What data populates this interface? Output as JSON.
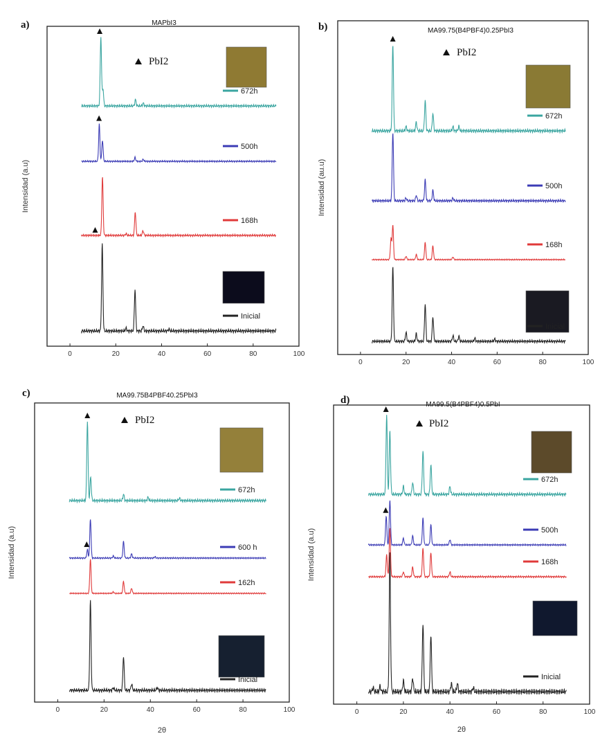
{
  "chart_data": [
    {
      "panel": "a)",
      "title": "MAPbI3",
      "type": "line",
      "xlabel": "",
      "ylabel": "Intensidad (a.u)",
      "xlim": [
        -10,
        100
      ],
      "xticks": [
        0,
        20,
        40,
        60,
        80,
        100
      ],
      "xtick_labels": [
        "0",
        "20",
        "40",
        "60",
        "80",
        "100"
      ],
      "marker_label": "PbI2",
      "series": [
        {
          "name": "672h",
          "color": "#3aa5a0",
          "peaks": [
            [
              13.5,
              1.0
            ],
            [
              14.4,
              0.25
            ],
            [
              28.6,
              0.09
            ],
            [
              32.0,
              0.04
            ]
          ],
          "pbi2_at": 13
        },
        {
          "name": "500h",
          "color": "#3b3bb5",
          "peaks": [
            [
              12.8,
              0.8
            ],
            [
              14.2,
              0.45
            ],
            [
              28.4,
              0.08
            ],
            [
              32.0,
              0.04
            ]
          ],
          "pbi2_at": 12.7
        },
        {
          "name": "168h",
          "color": "#e03a3a",
          "peaks": [
            [
              14.2,
              1.0
            ],
            [
              28.5,
              0.4
            ],
            [
              31.9,
              0.08
            ],
            [
              24.5,
              0.03
            ]
          ],
          "pbi2_at": 11
        },
        {
          "name": "Inicial",
          "color": "#222222",
          "peaks": [
            [
              14.1,
              1.0
            ],
            [
              28.4,
              0.48
            ],
            [
              31.9,
              0.06
            ],
            [
              24.5,
              0.03
            ],
            [
              43.2,
              0.02
            ]
          ],
          "pbi2_at": null
        }
      ]
    },
    {
      "panel": "b)",
      "title": "MA99.75(B4PBF4)0.25PbI3",
      "type": "line",
      "xlabel": "",
      "ylabel": "Intensidad (au.u)",
      "xlim": [
        -10,
        100
      ],
      "xticks": [
        0,
        20,
        40,
        60,
        80,
        100
      ],
      "xtick_labels": [
        "0",
        "20",
        "40",
        "60",
        "80",
        "100"
      ],
      "marker_label": "PbI2",
      "series": [
        {
          "name": "672h",
          "color": "#3aa5a0",
          "peaks": [
            [
              14.2,
              1.0
            ],
            [
              28.4,
              0.35
            ],
            [
              31.8,
              0.2
            ],
            [
              24.5,
              0.1
            ],
            [
              20,
              0.05
            ],
            [
              40.6,
              0.05
            ],
            [
              43.2,
              0.05
            ]
          ],
          "pbi2_at": 14.2
        },
        {
          "name": "500h",
          "color": "#3b3bb5",
          "peaks": [
            [
              14.2,
              1.0
            ],
            [
              28.4,
              0.3
            ],
            [
              31.8,
              0.15
            ],
            [
              24.5,
              0.08
            ],
            [
              20,
              0.04
            ],
            [
              40.6,
              0.04
            ]
          ],
          "pbi2_at": null
        },
        {
          "name": "168h",
          "color": "#e03a3a",
          "peaks": [
            [
              14.2,
              1.0
            ],
            [
              13.4,
              0.6
            ],
            [
              28.4,
              0.5
            ],
            [
              31.8,
              0.4
            ],
            [
              24.5,
              0.15
            ],
            [
              20,
              0.1
            ],
            [
              40.6,
              0.08
            ]
          ],
          "pbi2_at": null
        },
        {
          "name": "Inicial",
          "color": "#222222",
          "peaks": [
            [
              14.2,
              1.0
            ],
            [
              28.4,
              0.5
            ],
            [
              31.8,
              0.33
            ],
            [
              24.5,
              0.1
            ],
            [
              20,
              0.12
            ],
            [
              40.6,
              0.08
            ],
            [
              43.2,
              0.07
            ],
            [
              50.2,
              0.04
            ],
            [
              58.9,
              0.03
            ]
          ],
          "pbi2_at": null
        }
      ]
    },
    {
      "panel": "c)",
      "title": "MA99.75B4PBF40.25PbI3",
      "type": "line",
      "xlabel": "2θ",
      "ylabel": "Intensidad (a.u)",
      "xlim": [
        -10,
        100
      ],
      "xticks": [
        0,
        20,
        40,
        60,
        80,
        100
      ],
      "xtick_labels": [
        "0",
        "20",
        "40",
        "60",
        "80",
        "100"
      ],
      "marker_label": "PbI2",
      "series": [
        {
          "name": "672h",
          "color": "#3aa5a0",
          "peaks": [
            [
              12.8,
              1.0
            ],
            [
              14.2,
              0.3
            ],
            [
              28.4,
              0.08
            ],
            [
              39,
              0.04
            ],
            [
              52.5,
              0.03
            ]
          ],
          "pbi2_at": 12.8
        },
        {
          "name": "600 h",
          "color": "#3b3bb5",
          "peaks": [
            [
              14.1,
              0.95
            ],
            [
              12.8,
              0.2
            ],
            [
              28.4,
              0.4
            ],
            [
              31.9,
              0.1
            ],
            [
              24,
              0.05
            ],
            [
              42,
              0.03
            ]
          ],
          "pbi2_at": 12.5
        },
        {
          "name": "162h",
          "color": "#e03a3a",
          "peaks": [
            [
              14.1,
              1.0
            ],
            [
              28.4,
              0.35
            ],
            [
              31.9,
              0.15
            ],
            [
              24,
              0.04
            ]
          ],
          "pbi2_at": null
        },
        {
          "name": "Inicial",
          "color": "#222222",
          "peaks": [
            [
              14.1,
              1.0
            ],
            [
              28.4,
              0.38
            ],
            [
              31.9,
              0.07
            ],
            [
              24,
              0.03
            ],
            [
              43,
              0.03
            ]
          ],
          "pbi2_at": null
        }
      ]
    },
    {
      "panel": "d)",
      "title": "MA99.5(B4PBF4)0.5PbI",
      "type": "line",
      "xlabel": "2θ",
      "ylabel": "Intensidad (a.u)",
      "xlim": [
        -10,
        100
      ],
      "xticks": [
        0,
        20,
        40,
        60,
        80,
        100
      ],
      "xtick_labels": [
        "0",
        "20",
        "40",
        "60",
        "80",
        "100"
      ],
      "marker_label": "PbI2",
      "series": [
        {
          "name": "672h",
          "color": "#3aa5a0",
          "peaks": [
            [
              12.8,
              1.0
            ],
            [
              14.2,
              0.8
            ],
            [
              28.4,
              0.55
            ],
            [
              31.8,
              0.38
            ],
            [
              24,
              0.15
            ],
            [
              20,
              0.1
            ],
            [
              40,
              0.1
            ]
          ],
          "pbi2_at": 12.5
        },
        {
          "name": "500h",
          "color": "#3b3bb5",
          "peaks": [
            [
              12.6,
              0.65
            ],
            [
              14.2,
              1.0
            ],
            [
              28.4,
              0.6
            ],
            [
              31.8,
              0.45
            ],
            [
              24,
              0.2
            ],
            [
              20,
              0.15
            ],
            [
              40,
              0.12
            ]
          ],
          "pbi2_at": 12.4
        },
        {
          "name": "168h",
          "color": "#e03a3a",
          "peaks": [
            [
              12.8,
              0.45
            ],
            [
              14.2,
              1.0
            ],
            [
              28.4,
              0.6
            ],
            [
              31.8,
              0.5
            ],
            [
              24,
              0.2
            ],
            [
              20,
              0.1
            ],
            [
              40,
              0.1
            ]
          ],
          "pbi2_at": null
        },
        {
          "name": "Inicial",
          "color": "#222222",
          "peaks": [
            [
              14.2,
              1.0
            ],
            [
              28.4,
              0.5
            ],
            [
              31.8,
              0.42
            ],
            [
              24,
              0.1
            ],
            [
              20,
              0.08
            ],
            [
              40.6,
              0.06
            ],
            [
              43.2,
              0.06
            ],
            [
              50,
              0.03
            ],
            [
              7,
              0.03
            ],
            [
              10,
              0.04
            ]
          ],
          "pbi2_at": null
        }
      ]
    }
  ]
}
